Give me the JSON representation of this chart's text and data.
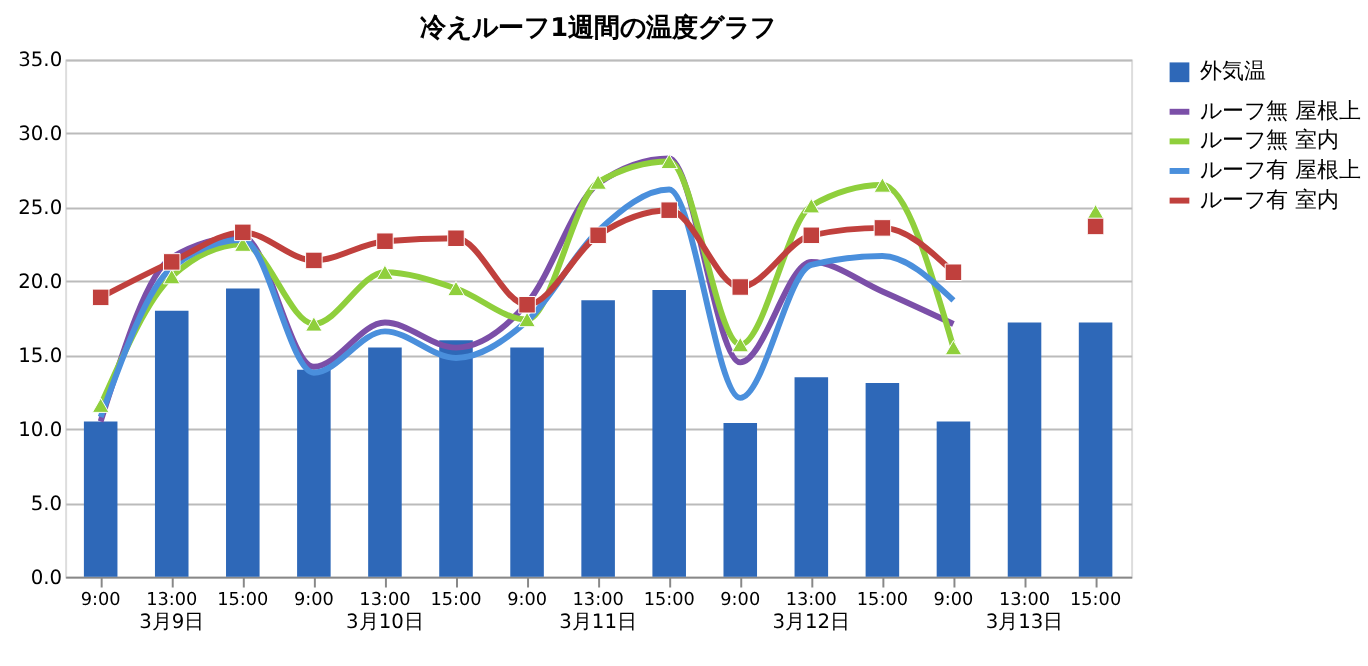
{
  "chart_data": {
    "type": "bar",
    "title": "冷えルーフ1週間の温度グラフ",
    "categories": [
      "9:00",
      "13:00",
      "15:00",
      "9:00",
      "13:00",
      "15:00",
      "9:00",
      "13:00",
      "15:00",
      "9:00",
      "13:00",
      "15:00",
      "9:00",
      "13:00",
      "15:00"
    ],
    "annotations": [
      "3月9日",
      "3月10日",
      "3月11日",
      "3月12日",
      "3月13日"
    ],
    "series": [
      {
        "name": "外気温",
        "color": "#2e68b8",
        "values": [
          10.5,
          18.0,
          19.5,
          14.0,
          15.5,
          16.0,
          15.5,
          18.7,
          19.4,
          10.4,
          13.5,
          13.1,
          10.5,
          17.2,
          17.2
        ]
      },
      {
        "name": "ルーフ無 屋根上",
        "type": "line",
        "color": "#7b4fa8",
        "marker": "none",
        "values": [
          10.5,
          21.6,
          23.0,
          14.2,
          17.2,
          15.5,
          18.5,
          26.6,
          28.3,
          14.5,
          21.3,
          19.3,
          17.1,
          null,
          null
        ]
      },
      {
        "name": "ルーフ無 室内",
        "type": "line",
        "color": "#8fcf3c",
        "marker": "triangle",
        "values": [
          11.6,
          20.3,
          22.5,
          17.1,
          20.6,
          19.5,
          17.4,
          26.7,
          28.1,
          15.7,
          25.1,
          26.5,
          15.5,
          null,
          24.7
        ]
      },
      {
        "name": "ルーフ有 屋根上",
        "type": "line",
        "color": "#4a8fdc",
        "marker": "none",
        "values": [
          10.8,
          20.9,
          22.8,
          13.8,
          16.6,
          14.8,
          17.3,
          23.4,
          26.2,
          12.1,
          21.1,
          21.7,
          18.7,
          null,
          null
        ]
      },
      {
        "name": "ルーフ有 室内",
        "type": "line",
        "color": "#c0403d",
        "marker": "square",
        "values": [
          18.9,
          21.3,
          23.3,
          21.4,
          22.7,
          22.9,
          18.4,
          23.1,
          24.8,
          19.6,
          23.1,
          23.6,
          20.6,
          null,
          23.7
        ]
      }
    ],
    "ylim": [
      0,
      35
    ],
    "yticks": [
      {
        "value": 0,
        "label": "0.0"
      },
      {
        "value": 5,
        "label": "5.0"
      },
      {
        "value": 10,
        "label": "10.0"
      },
      {
        "value": 15,
        "label": "15.0"
      },
      {
        "value": 20,
        "label": "20.0"
      },
      {
        "value": 25,
        "label": "25.0"
      },
      {
        "value": 30,
        "label": "30.0"
      },
      {
        "value": 35,
        "label": "35.0"
      }
    ],
    "grid": "y",
    "legend": "right"
  }
}
